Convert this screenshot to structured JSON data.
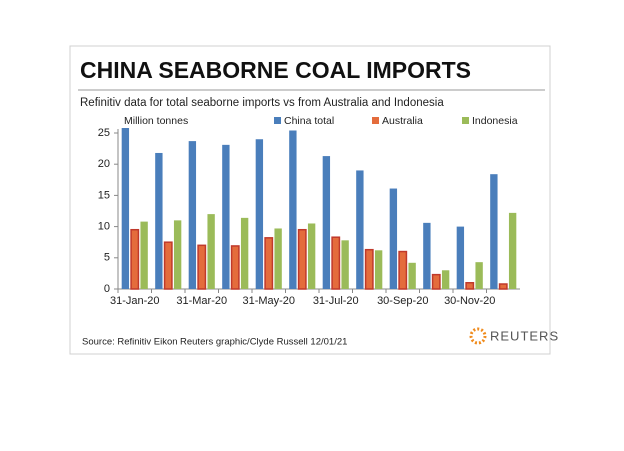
{
  "chart_data": {
    "type": "bar",
    "title": "CHINA SEABORNE COAL IMPORTS",
    "subtitle": "Refinitiv data for total seaborne imports vs from Australia and Indonesia",
    "y_label": "Million tonnes",
    "categories": [
      "31-Jan-20",
      null,
      "31-Mar-20",
      null,
      "31-May-20",
      null,
      "31-Jul-20",
      null,
      "30-Sep-20",
      null,
      "30-Nov-20",
      null
    ],
    "series": [
      {
        "name": "China total",
        "color": "#4a7ebb",
        "values": [
          25.8,
          21.8,
          23.7,
          23.1,
          24.0,
          25.4,
          21.3,
          19.0,
          16.1,
          10.6,
          10.0,
          18.4
        ]
      },
      {
        "name": "Australia",
        "color": "#e46c3c",
        "values": [
          9.5,
          7.5,
          7.0,
          6.9,
          8.2,
          9.5,
          8.3,
          6.3,
          6.0,
          2.3,
          1.0,
          0.8
        ]
      },
      {
        "name": "Indonesia",
        "color": "#9bbb59",
        "values": [
          10.8,
          11.0,
          12.0,
          11.4,
          9.7,
          10.5,
          7.8,
          6.2,
          4.2,
          3.0,
          4.3,
          12.2
        ]
      }
    ],
    "ylim": [
      0,
      25
    ],
    "yticks": [
      0,
      5,
      10,
      15,
      20,
      25
    ],
    "source": "Source: Refinitiv Eikon",
    "credit": "Reuters graphic/Clyde Russell 12/01/21",
    "logo": "REUTERS"
  }
}
